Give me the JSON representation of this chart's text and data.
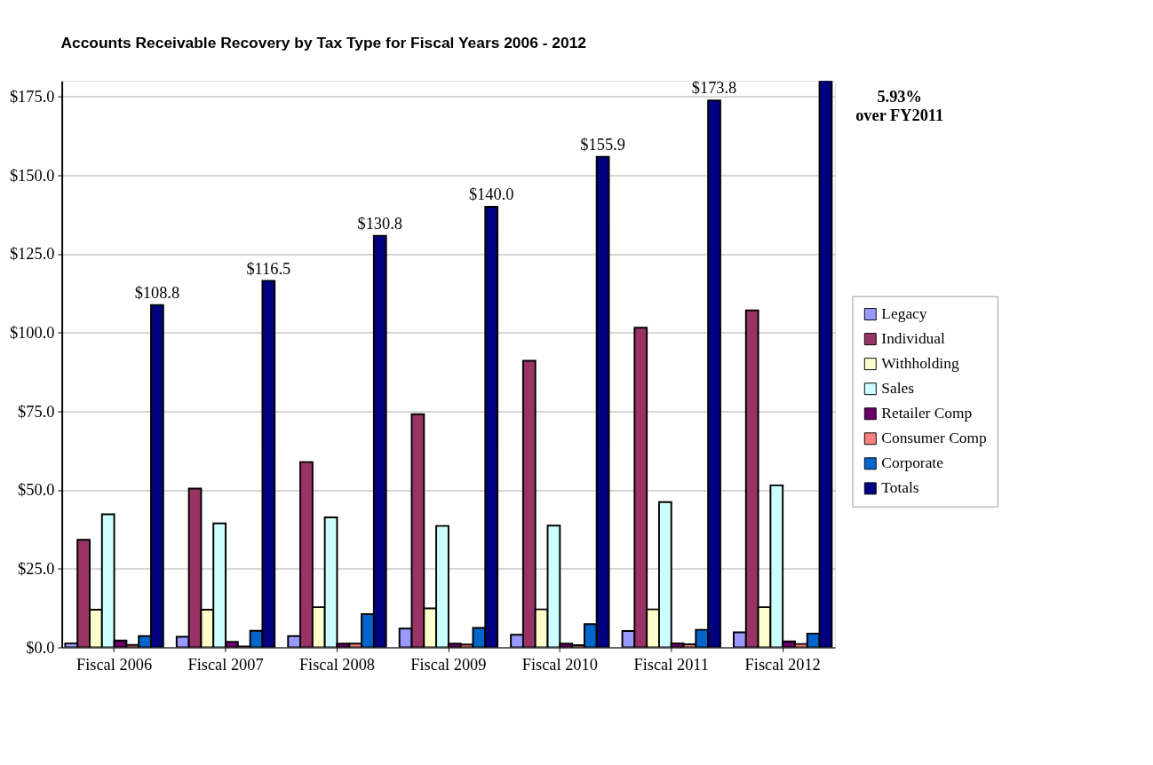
{
  "chart_data": {
    "type": "bar",
    "title": "Accounts Receivable Recovery by Tax Type for Fiscal Years 2006 - 2012",
    "categories": [
      "Fiscal 2006",
      "Fiscal 2007",
      "Fiscal 2008",
      "Fiscal 2009",
      "Fiscal 2010",
      "Fiscal 2011",
      "Fiscal 2012"
    ],
    "series": [
      {
        "name": "Legacy",
        "color": "#9999ff",
        "values": [
          1.3,
          3.4,
          3.6,
          6.0,
          4.0,
          5.2,
          4.8
        ]
      },
      {
        "name": "Individual",
        "color": "#993366",
        "values": [
          34.2,
          50.5,
          58.9,
          74.1,
          91.1,
          101.6,
          107.1
        ]
      },
      {
        "name": "Withholding",
        "color": "#ffffcc",
        "values": [
          12.0,
          12.0,
          12.8,
          12.4,
          12.1,
          12.1,
          12.8
        ]
      },
      {
        "name": "Sales",
        "color": "#ccffff",
        "values": [
          42.3,
          39.4,
          41.3,
          38.6,
          38.7,
          46.2,
          51.5
        ]
      },
      {
        "name": "Retailer Comp",
        "color": "#660066",
        "values": [
          2.2,
          1.8,
          1.2,
          1.2,
          1.2,
          1.3,
          1.9
        ]
      },
      {
        "name": "Consumer Comp",
        "color": "#ff8080",
        "values": [
          0.8,
          0.3,
          1.2,
          0.9,
          0.7,
          1.0,
          1.1
        ]
      },
      {
        "name": "Corporate",
        "color": "#0066cc",
        "values": [
          3.6,
          5.3,
          10.6,
          6.2,
          7.4,
          5.6,
          4.4
        ]
      },
      {
        "name": "Totals",
        "color": "#000080",
        "values": [
          108.8,
          116.5,
          130.8,
          140.0,
          155.9,
          173.8,
          180.0
        ],
        "value_labels": [
          "$108.8",
          "$116.5",
          "$130.8",
          "$140.0",
          "$155.9",
          "$173.8",
          null
        ]
      }
    ],
    "ylim": [
      0,
      180
    ],
    "yticks": [
      {
        "value": 0,
        "label": "$0.0"
      },
      {
        "value": 25,
        "label": "$25.0"
      },
      {
        "value": 50,
        "label": "$50.0"
      },
      {
        "value": 75,
        "label": "$75.0"
      },
      {
        "value": 100,
        "label": "$100.0"
      },
      {
        "value": 125,
        "label": "$125.0"
      },
      {
        "value": 150,
        "label": "$150.0"
      },
      {
        "value": 175,
        "label": "$175.0"
      }
    ],
    "grid": "y",
    "legend": "right",
    "annotations": [
      "5.93%\nover FY2011"
    ]
  }
}
